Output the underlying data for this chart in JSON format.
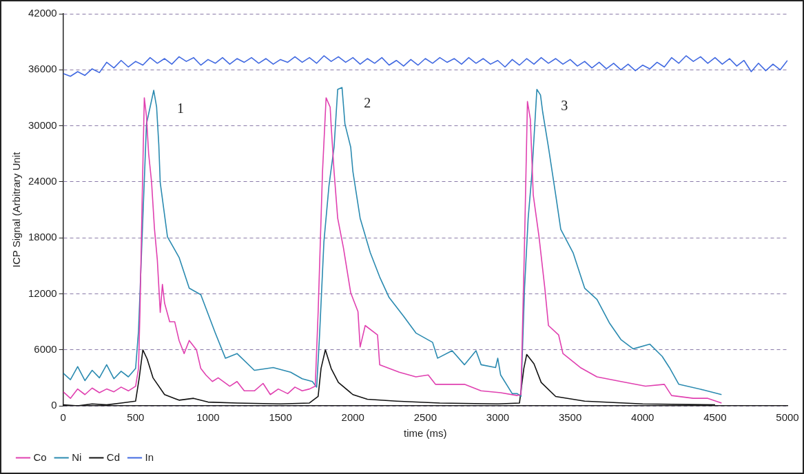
{
  "chart_data": {
    "type": "line",
    "xlabel": "time (ms)",
    "ylabel": "ICP Signal (Arbitrary Unit",
    "xlim": [
      0,
      5000
    ],
    "xticks": [
      0,
      500,
      1000,
      1500,
      2000,
      2500,
      3000,
      3500,
      4000,
      4500,
      5000
    ],
    "ylim": [
      0,
      42000
    ],
    "yticks": [
      0,
      6000,
      12000,
      18000,
      24000,
      30000,
      36000,
      42000
    ],
    "grid": "y",
    "legend": "bottom left",
    "marker": "none",
    "line_style": "solid",
    "annotations": [
      "1",
      "2",
      "3"
    ],
    "series": [
      {
        "name": "Co",
        "color": "#e040b0",
        "x": [
          0,
          50,
          100,
          150,
          200,
          250,
          300,
          350,
          400,
          450,
          500,
          520,
          530,
          545,
          560,
          575,
          590,
          610,
          630,
          650,
          670,
          685,
          700,
          735,
          770,
          800,
          835,
          870,
          920,
          950,
          985,
          1030,
          1070,
          1150,
          1200,
          1250,
          1320,
          1380,
          1430,
          1485,
          1550,
          1600,
          1650,
          1700,
          1740,
          1760,
          1790,
          1815,
          1843,
          1850,
          1870,
          1895,
          1935,
          1985,
          2035,
          2050,
          2085,
          2170,
          2185,
          2320,
          2435,
          2520,
          2570,
          2770,
          2885,
          3020,
          3135,
          3160,
          3185,
          3205,
          3225,
          3245,
          3285,
          3325,
          3350,
          3420,
          3450,
          3570,
          3685,
          3850,
          4020,
          4150,
          4200,
          4350,
          4450,
          4545
        ],
        "values": [
          1500,
          800,
          1800,
          1200,
          1900,
          1400,
          1800,
          1500,
          2000,
          1600,
          2100,
          4000,
          10000,
          22000,
          33000,
          31000,
          27000,
          24000,
          19000,
          15600,
          10000,
          13000,
          11000,
          9000,
          9000,
          7000,
          5600,
          7000,
          6000,
          4000,
          3300,
          2600,
          3000,
          2100,
          2600,
          1600,
          1600,
          2400,
          1200,
          1800,
          1300,
          2000,
          1600,
          1800,
          2100,
          10000,
          25000,
          33000,
          32000,
          30000,
          25100,
          20100,
          16900,
          12100,
          10100,
          6300,
          8600,
          7600,
          4400,
          3600,
          3100,
          3300,
          2300,
          2300,
          1600,
          1400,
          1100,
          1200,
          17600,
          32600,
          30700,
          22600,
          18100,
          12600,
          8600,
          7600,
          5600,
          4100,
          3100,
          2600,
          2100,
          2300,
          1100,
          800,
          800,
          300
        ]
      },
      {
        "name": "Ni",
        "color": "#2a8ab0",
        "x": [
          0,
          50,
          100,
          150,
          200,
          250,
          300,
          350,
          400,
          450,
          500,
          520,
          550,
          575,
          600,
          625,
          645,
          660,
          670,
          720,
          800,
          870,
          950,
          1050,
          1120,
          1200,
          1320,
          1450,
          1570,
          1650,
          1720,
          1750,
          1770,
          1800,
          1835,
          1870,
          1895,
          1925,
          1945,
          1985,
          2000,
          2050,
          2120,
          2185,
          2250,
          2350,
          2435,
          2550,
          2585,
          2685,
          2770,
          2850,
          2885,
          2985,
          3000,
          3020,
          3100,
          3135,
          3160,
          3185,
          3210,
          3235,
          3270,
          3295,
          3310,
          3350,
          3400,
          3435,
          3520,
          3600,
          3685,
          3770,
          3850,
          3935,
          4050,
          4135,
          4185,
          4250,
          4420,
          4545
        ],
        "values": [
          3500,
          2800,
          4200,
          2700,
          3800,
          3000,
          4400,
          2900,
          3700,
          3100,
          4000,
          8000,
          20100,
          30200,
          32000,
          33800,
          32000,
          28000,
          23900,
          18100,
          15900,
          12600,
          11900,
          7800,
          5100,
          5600,
          3800,
          4100,
          3600,
          2900,
          2600,
          2000,
          7600,
          17600,
          23600,
          27700,
          33900,
          34100,
          30200,
          27700,
          25100,
          20100,
          16400,
          13800,
          11600,
          9600,
          7800,
          6800,
          5100,
          5900,
          4400,
          5900,
          4400,
          4100,
          5100,
          3300,
          1300,
          1300,
          1000,
          12600,
          20100,
          24700,
          33900,
          33300,
          31500,
          27700,
          22600,
          18900,
          16400,
          12600,
          11400,
          8900,
          7100,
          6100,
          6600,
          5300,
          4100,
          2300,
          1700,
          1200
        ]
      },
      {
        "name": "Cd",
        "color": "#111111",
        "x": [
          0,
          100,
          200,
          300,
          400,
          500,
          525,
          550,
          580,
          620,
          700,
          800,
          900,
          1000,
          1200,
          1500,
          1700,
          1760,
          1780,
          1810,
          1850,
          1900,
          2000,
          2100,
          2300,
          2600,
          3000,
          3150,
          3180,
          3200,
          3250,
          3300,
          3400,
          3600,
          4000,
          4500
        ],
        "values": [
          100,
          0,
          200,
          100,
          300,
          500,
          3000,
          6000,
          5000,
          3000,
          1200,
          600,
          800,
          400,
          300,
          200,
          300,
          1000,
          4000,
          6000,
          4000,
          2500,
          1200,
          700,
          500,
          300,
          200,
          300,
          4000,
          5500,
          4500,
          2500,
          1000,
          500,
          200,
          100
        ]
      },
      {
        "name": "In",
        "color": "#4169e1",
        "x": [
          0,
          50,
          100,
          150,
          200,
          250,
          300,
          350,
          400,
          450,
          500,
          550,
          600,
          650,
          700,
          750,
          800,
          850,
          900,
          950,
          1000,
          1050,
          1100,
          1150,
          1200,
          1250,
          1300,
          1350,
          1400,
          1450,
          1500,
          1550,
          1600,
          1650,
          1700,
          1750,
          1800,
          1850,
          1900,
          1950,
          2000,
          2050,
          2100,
          2150,
          2200,
          2250,
          2300,
          2350,
          2400,
          2450,
          2500,
          2550,
          2600,
          2650,
          2700,
          2750,
          2800,
          2850,
          2900,
          2950,
          3000,
          3050,
          3100,
          3150,
          3200,
          3250,
          3300,
          3350,
          3400,
          3450,
          3500,
          3550,
          3600,
          3650,
          3700,
          3750,
          3800,
          3850,
          3900,
          3950,
          4000,
          4050,
          4100,
          4150,
          4200,
          4250,
          4300,
          4350,
          4400,
          4450,
          4500,
          4550,
          4600,
          4650,
          4700,
          4750,
          4800,
          4850,
          4900,
          4950,
          5000
        ],
        "values": [
          35600,
          35300,
          35800,
          35400,
          36100,
          35700,
          36800,
          36200,
          37000,
          36300,
          36900,
          36500,
          37300,
          36700,
          37200,
          36600,
          37400,
          36900,
          37300,
          36500,
          37100,
          36700,
          37300,
          36600,
          37200,
          36800,
          37300,
          36700,
          37200,
          36600,
          37100,
          36800,
          37400,
          36800,
          37300,
          36700,
          37500,
          36900,
          37400,
          36800,
          37300,
          36600,
          37200,
          36700,
          37300,
          36500,
          37000,
          36400,
          37100,
          36500,
          37200,
          36700,
          37300,
          36800,
          37200,
          36600,
          37300,
          36700,
          37200,
          36600,
          37000,
          36300,
          37100,
          36500,
          37200,
          36600,
          37300,
          36700,
          37200,
          36600,
          37100,
          36400,
          36900,
          36200,
          36800,
          36100,
          36700,
          36000,
          36600,
          35900,
          36500,
          36100,
          36800,
          36300,
          37300,
          36700,
          37500,
          36900,
          37400,
          36700,
          37300,
          36600,
          37200,
          36400,
          37000,
          35800,
          36700,
          35900,
          36600,
          36000,
          37000
        ]
      }
    ]
  }
}
